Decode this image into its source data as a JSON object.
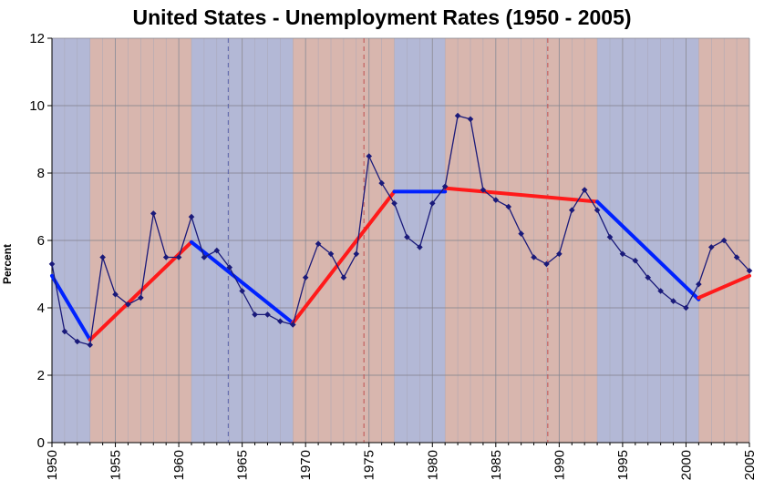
{
  "chart_data": {
    "type": "line",
    "title": "United States - Unemployment Rates (1950 - 2005)",
    "ylabel": "Percent",
    "xlabel": "",
    "xlim": [
      1950,
      2005
    ],
    "ylim": [
      0,
      12
    ],
    "yticks": [
      0,
      2,
      4,
      6,
      8,
      10,
      12
    ],
    "xticks": [
      1950,
      1955,
      1960,
      1965,
      1970,
      1975,
      1980,
      1985,
      1990,
      1995,
      2000,
      2005
    ],
    "grid": true,
    "series": [
      {
        "color": "#1a1a7a",
        "x": [
          1950,
          1951,
          1952,
          1953,
          1954,
          1955,
          1956,
          1957,
          1958,
          1959,
          1960,
          1961,
          1962,
          1963,
          1964,
          1965,
          1966,
          1967,
          1968,
          1969,
          1970,
          1971,
          1972,
          1973,
          1974,
          1975,
          1976,
          1977,
          1978,
          1979,
          1980,
          1981,
          1982,
          1983,
          1984,
          1985,
          1986,
          1987,
          1988,
          1989,
          1990,
          1991,
          1992,
          1993,
          1994,
          1995,
          1996,
          1997,
          1998,
          1999,
          2000,
          2001,
          2002,
          2003,
          2004,
          2005
        ],
        "values": [
          5.3,
          3.3,
          3.0,
          2.9,
          5.5,
          4.4,
          4.1,
          4.3,
          6.8,
          5.5,
          5.5,
          6.7,
          5.5,
          5.7,
          5.2,
          4.5,
          3.8,
          3.8,
          3.6,
          3.5,
          4.9,
          5.9,
          5.6,
          4.9,
          5.6,
          8.5,
          7.7,
          7.1,
          6.1,
          5.8,
          7.1,
          7.6,
          9.7,
          9.6,
          7.5,
          7.2,
          7.0,
          6.2,
          5.5,
          5.3,
          5.6,
          6.9,
          7.5,
          6.9,
          6.1,
          5.6,
          5.4,
          4.9,
          4.5,
          4.2,
          4.0,
          4.7,
          5.8,
          6.0,
          5.5,
          5.1
        ]
      }
    ],
    "administrations": [
      {
        "start": 1950,
        "end": 1953,
        "party": "D"
      },
      {
        "start": 1953,
        "end": 1961,
        "party": "R"
      },
      {
        "start": 1961,
        "end": 1969,
        "party": "D"
      },
      {
        "start": 1969,
        "end": 1977,
        "party": "R"
      },
      {
        "start": 1977,
        "end": 1981,
        "party": "D"
      },
      {
        "start": 1981,
        "end": 1993,
        "party": "R"
      },
      {
        "start": 1993,
        "end": 2001,
        "party": "D"
      },
      {
        "start": 2001,
        "end": 2005,
        "party": "R"
      }
    ],
    "term_trends": [
      {
        "x1": 1950,
        "y1": 4.95,
        "x2": 1953,
        "y2": 3.05,
        "party": "D"
      },
      {
        "x1": 1953,
        "y1": 3.05,
        "x2": 1961,
        "y2": 5.95,
        "party": "R"
      },
      {
        "x1": 1961,
        "y1": 5.95,
        "x2": 1969,
        "y2": 3.55,
        "party": "D"
      },
      {
        "x1": 1969,
        "y1": 3.55,
        "x2": 1977,
        "y2": 7.45,
        "party": "R"
      },
      {
        "x1": 1977,
        "y1": 7.45,
        "x2": 1981,
        "y2": 7.45,
        "party": "D"
      },
      {
        "x1": 1981,
        "y1": 7.55,
        "x2": 1993,
        "y2": 7.15,
        "party": "R"
      },
      {
        "x1": 1993,
        "y1": 7.15,
        "x2": 2001,
        "y2": 4.25,
        "party": "D"
      },
      {
        "x1": 2001,
        "y1": 4.3,
        "x2": 2005,
        "y2": 4.95,
        "party": "R"
      }
    ],
    "dashed_markers": [
      1963.9,
      1974.6,
      1989.1
    ],
    "colors": {
      "band_D": "#b3b8d6",
      "band_R": "#d8b6ae",
      "trend_D": "#0022ff",
      "trend_R": "#ff1a1a",
      "series": "#1a1a7a",
      "dashed_D": "#5a62a8",
      "dashed_R": "#c05050"
    }
  }
}
